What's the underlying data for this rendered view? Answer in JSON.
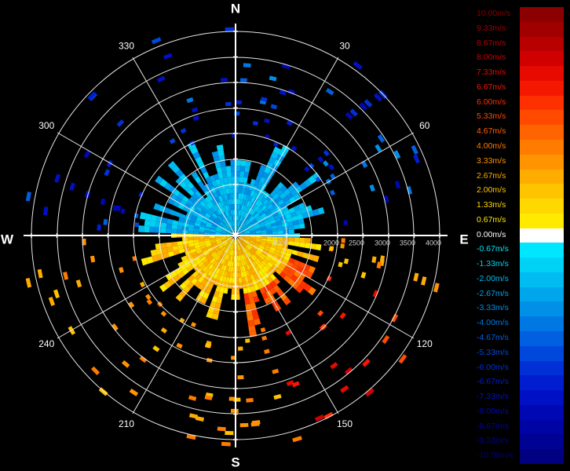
{
  "compass": {
    "north": "N",
    "east": "E",
    "south": "S",
    "west": "W"
  },
  "angle_labels": [
    "30",
    "60",
    "120",
    "150",
    "210",
    "240",
    "300",
    "330"
  ],
  "range_labels": [
    "1000",
    "2000",
    "2500",
    "3000",
    "3500",
    "4000"
  ],
  "legend": [
    {
      "label": "10.00m/s",
      "color": "#8b0000"
    },
    {
      "label": "9.33m/s",
      "color": "#a00000"
    },
    {
      "label": "8.67m/s",
      "color": "#b80000"
    },
    {
      "label": "8.00m/s",
      "color": "#d00000"
    },
    {
      "label": "7.33m/s",
      "color": "#e60a00"
    },
    {
      "label": "6.67m/s",
      "color": "#f51800"
    },
    {
      "label": "6.00m/s",
      "color": "#ff3000"
    },
    {
      "label": "5.33m/s",
      "color": "#ff4a00"
    },
    {
      "label": "4.67m/s",
      "color": "#ff6400"
    },
    {
      "label": "4.00m/s",
      "color": "#ff7c00"
    },
    {
      "label": "3.33m/s",
      "color": "#ff9400"
    },
    {
      "label": "2.67m/s",
      "color": "#ffac00"
    },
    {
      "label": "2.00m/s",
      "color": "#ffc400"
    },
    {
      "label": "1.33m/s",
      "color": "#ffd800"
    },
    {
      "label": "0.67m/s",
      "color": "#ffea00"
    },
    {
      "label": "0.00m/s",
      "color": "#ffffff"
    },
    {
      "label": "-0.67m/s",
      "color": "#00e6ff"
    },
    {
      "label": "-1.33m/s",
      "color": "#00d2f5"
    },
    {
      "label": "-2.00m/s",
      "color": "#00bcf0"
    },
    {
      "label": "-2.67m/s",
      "color": "#00a6ec"
    },
    {
      "label": "-3.33m/s",
      "color": "#0090e8"
    },
    {
      "label": "-4.00m/s",
      "color": "#0078e4"
    },
    {
      "label": "-4.67m/s",
      "color": "#0060e0"
    },
    {
      "label": "-5.33m/s",
      "color": "#0048dc"
    },
    {
      "label": "-6.00m/s",
      "color": "#0030d6"
    },
    {
      "label": "-6.67m/s",
      "color": "#001ed0"
    },
    {
      "label": "-7.33m/s",
      "color": "#0010c4"
    },
    {
      "label": "-8.00m/s",
      "color": "#0008b4"
    },
    {
      "label": "-8.67m/s",
      "color": "#0004a4"
    },
    {
      "label": "-9.33m/s",
      "color": "#000294"
    },
    {
      "label": "-10.00m/s",
      "color": "#000080"
    }
  ]
}
